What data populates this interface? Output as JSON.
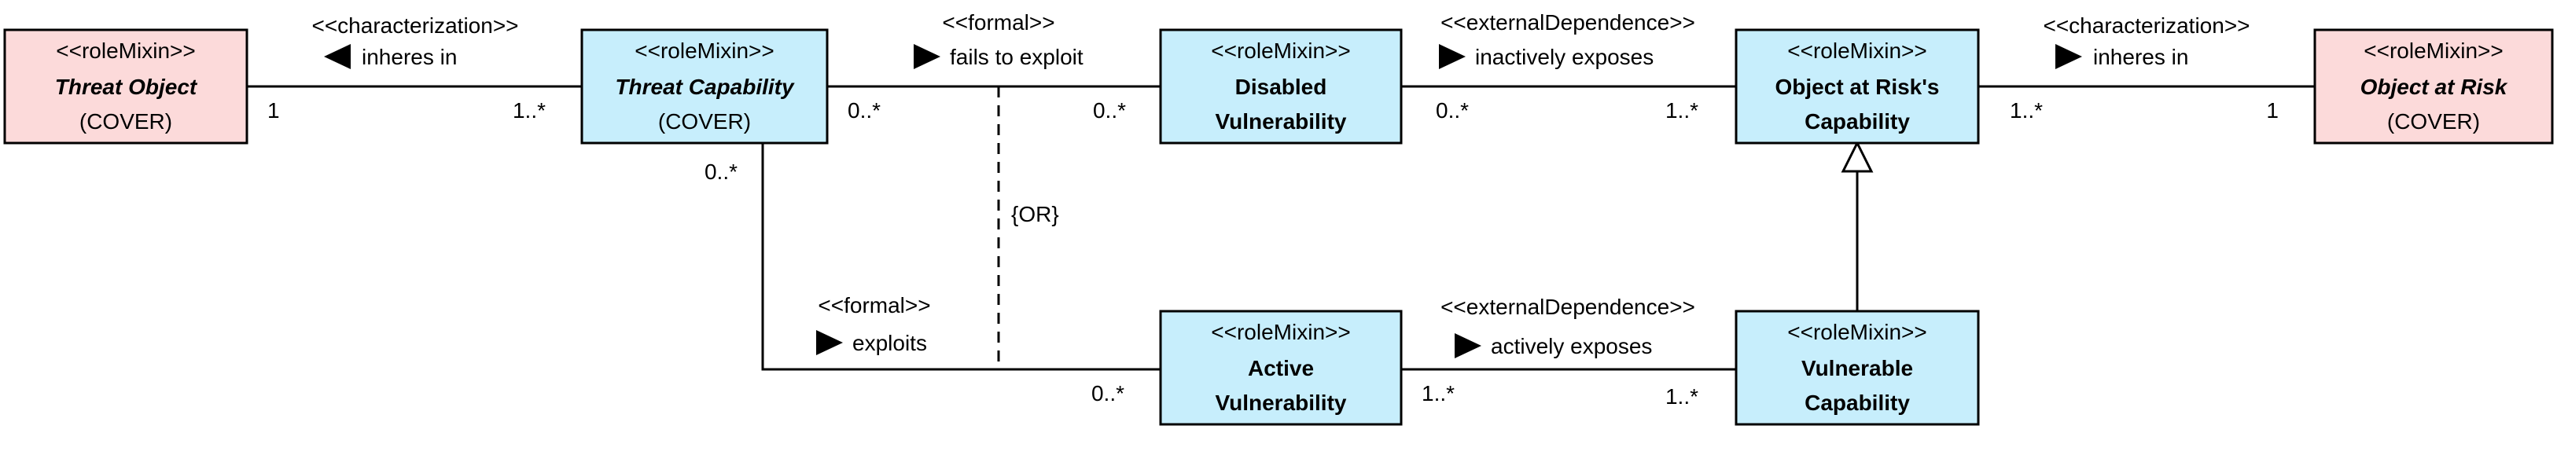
{
  "colors": {
    "kind_box_fill": "#fcdada",
    "relator_box_fill": "#c7eefc",
    "line": "#000000"
  },
  "classes": {
    "threat_object": {
      "stereotype": "<<roleMixin>>",
      "name": "Threat Object",
      "subtitle": "(COVER)"
    },
    "threat_capability": {
      "stereotype": "<<roleMixin>>",
      "name": "Threat Capability",
      "subtitle": "(COVER)"
    },
    "disabled_vulnerability": {
      "stereotype": "<<roleMixin>>",
      "name_line1": "Disabled",
      "name_line2": "Vulnerability"
    },
    "object_at_risk_capability": {
      "stereotype": "<<roleMixin>>",
      "name_line1": "Object at Risk's",
      "name_line2": "Capability"
    },
    "object_at_risk": {
      "stereotype": "<<roleMixin>>",
      "name": "Object at Risk",
      "subtitle": "(COVER)"
    },
    "active_vulnerability": {
      "stereotype": "<<roleMixin>>",
      "name_line1": "Active",
      "name_line2": "Vulnerability"
    },
    "vulnerable_capability": {
      "stereotype": "<<roleMixin>>",
      "name_line1": "Vulnerable",
      "name_line2": "Capability"
    }
  },
  "associations": {
    "inheres_threat": {
      "stereotype": "<<characterization>>",
      "name": "inheres in",
      "arrow_direction": "left",
      "mult_left": "1",
      "mult_right": "1..*"
    },
    "fails_to_exploit": {
      "stereotype": "<<formal>>",
      "name": "fails to exploit",
      "arrow_direction": "right",
      "mult_left": "0..*",
      "mult_right": "0..*"
    },
    "inactively_exposes": {
      "stereotype": "<<externalDependence>>",
      "name": "inactively exposes",
      "arrow_direction": "right",
      "mult_left": "0..*",
      "mult_right": "1..*"
    },
    "inheres_risk": {
      "stereotype": "<<characterization>>",
      "name": "inheres in",
      "arrow_direction": "right",
      "mult_left": "1..*",
      "mult_right": "1"
    },
    "exploits": {
      "stereotype": "<<formal>>",
      "name": "exploits",
      "arrow_direction": "right",
      "mult_top": "0..*",
      "mult_right": "0..*"
    },
    "actively_exposes": {
      "stereotype": "<<externalDependence>>",
      "name": "actively exposes",
      "arrow_direction": "right",
      "mult_left": "1..*",
      "mult_right": "1..*"
    }
  },
  "constraint": "{OR}"
}
